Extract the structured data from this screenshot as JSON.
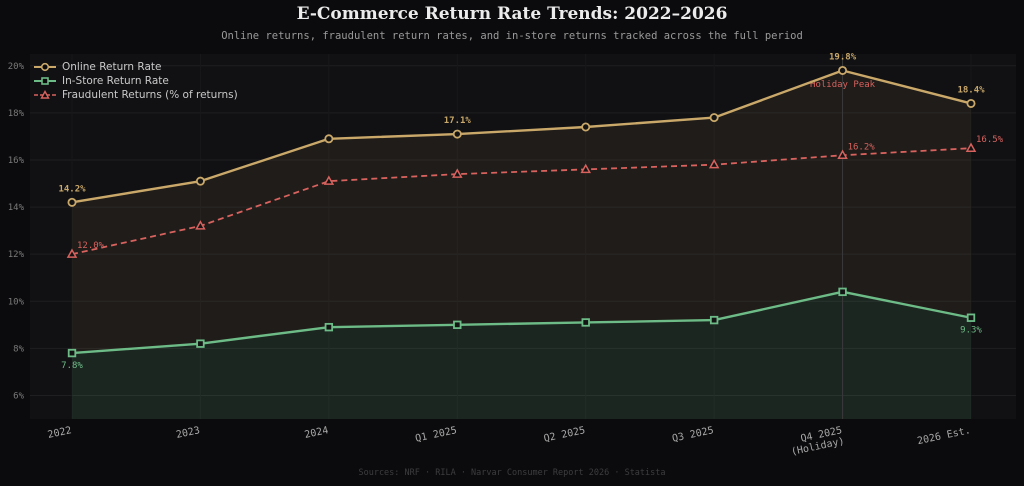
{
  "header": {
    "title": "E-Commerce Return Rate Trends: 2022–2026",
    "subtitle": "Online returns, fraudulent return rates, and in-store returns tracked across the full period"
  },
  "footer": {
    "source": "Sources: NRF · RILA · Narvar Consumer Report 2026 · Statista"
  },
  "chart_data": {
    "type": "line",
    "title": "E-Commerce Return Rate Trends: 2022–2026",
    "subtitle": "Online returns, fraudulent return rates, and in-store returns tracked across the full period",
    "categories": [
      "2022",
      "2023",
      "2024",
      "Q1 2025",
      "Q2 2025",
      "Q3 2025",
      "Q4 2025\n(Holiday)",
      "2026 Est."
    ],
    "ylim": [
      5,
      20.5
    ],
    "yticks": [
      6,
      8,
      10,
      12,
      14,
      16,
      18,
      20
    ],
    "ytick_labels": [
      "6%",
      "8%",
      "10%",
      "12%",
      "14%",
      "16%",
      "18%",
      "20%"
    ],
    "grid": true,
    "legend_position": "top-left",
    "series": [
      {
        "name": "Online Return Rate",
        "values": [
          14.2,
          15.1,
          16.9,
          17.1,
          17.4,
          17.8,
          19.8,
          18.4
        ],
        "color": "#c9a86a",
        "marker": "circle",
        "style": "solid",
        "fill": true,
        "labels": [
          {
            "index": 0,
            "text": "14.2%"
          },
          {
            "index": 3,
            "text": "17.1%"
          },
          {
            "index": 6,
            "text": "19.8%"
          },
          {
            "index": 7,
            "text": "18.4%"
          }
        ]
      },
      {
        "name": "In-Store Return Rate",
        "values": [
          7.8,
          8.2,
          8.9,
          9.0,
          9.1,
          9.2,
          10.4,
          9.3
        ],
        "color": "#6dbb86",
        "marker": "square",
        "style": "solid",
        "fill": true,
        "labels": [
          {
            "index": 0,
            "text": "7.8%"
          },
          {
            "index": 7,
            "text": "9.3%"
          }
        ]
      },
      {
        "name": "Fraudulent Returns (% of returns)",
        "values": [
          12.0,
          13.2,
          15.1,
          15.4,
          15.6,
          15.8,
          16.2,
          16.5
        ],
        "color": "#d7625e",
        "marker": "triangle",
        "style": "dashed",
        "fill": false,
        "labels": [
          {
            "index": 0,
            "text": "12.0%"
          },
          {
            "index": 6,
            "text": "16.2%"
          },
          {
            "index": 7,
            "text": "16.5%"
          }
        ]
      }
    ],
    "annotations": [
      {
        "text": "Holiday Peak",
        "category_index": 6,
        "vertical_line": true,
        "color": "#d7625e"
      }
    ]
  }
}
